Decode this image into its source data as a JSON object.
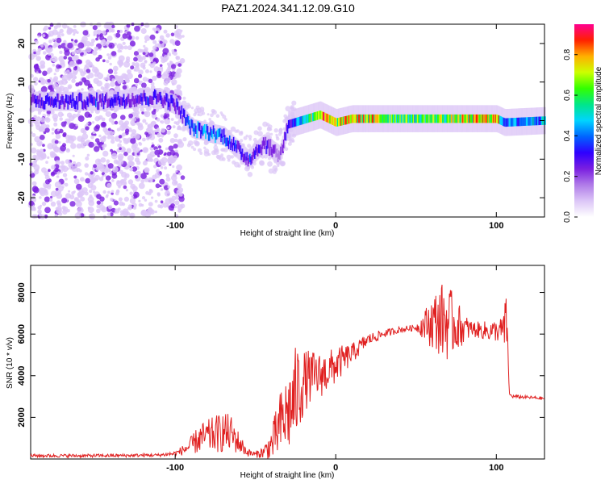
{
  "figure": {
    "title": "PAZ1.2024.341.12.09.G10"
  },
  "colors": {
    "snr_line": "#e02020",
    "axis": "#000000",
    "spectrogram_palette": [
      "#ffffff",
      "#dcc6f7",
      "#b07be8",
      "#7a1fe0",
      "#2f00ff",
      "#0064ff",
      "#00d4ff",
      "#00e68a",
      "#33ff00",
      "#ccff00",
      "#ffb000",
      "#ff2000",
      "#ff0090"
    ]
  },
  "chart_data": [
    {
      "type": "heatmap",
      "title": "",
      "xlabel": "Height of straight line (km)",
      "ylabel": "Frequency (Hz)",
      "xlim": [
        -190,
        130
      ],
      "ylim": [
        -25,
        25
      ],
      "x_ticks": [
        -100,
        0,
        100
      ],
      "x_tick_labels": [
        "-100",
        "0",
        "100"
      ],
      "y_ticks": [
        -20,
        -10,
        0,
        10,
        20
      ],
      "y_tick_labels": [
        "-20",
        "-10",
        "0",
        "10",
        "20"
      ],
      "colorbar": {
        "label": "Normalized spectral amplitude",
        "range": [
          0,
          0.95
        ],
        "ticks": [
          0.0,
          0.2,
          0.4,
          0.6,
          0.8
        ],
        "tick_labels": [
          "0.0",
          "0.2",
          "0.4",
          "0.6",
          "0.8"
        ]
      },
      "ridge": [
        {
          "x": -190,
          "freq": 5,
          "amp": 0.3
        },
        {
          "x": -150,
          "freq": 5,
          "amp": 0.3
        },
        {
          "x": -110,
          "freq": 6,
          "amp": 0.3
        },
        {
          "x": -100,
          "freq": 4,
          "amp": 0.3
        },
        {
          "x": -90,
          "freq": -2,
          "amp": 0.4
        },
        {
          "x": -70,
          "freq": -4,
          "amp": 0.4
        },
        {
          "x": -55,
          "freq": -10,
          "amp": 0.3
        },
        {
          "x": -45,
          "freq": -6,
          "amp": 0.3
        },
        {
          "x": -35,
          "freq": -9,
          "amp": 0.2
        },
        {
          "x": -30,
          "freq": -1,
          "amp": 0.3
        },
        {
          "x": -10,
          "freq": 1.5,
          "amp": 0.8
        },
        {
          "x": 0,
          "freq": -0.5,
          "amp": 0.7
        },
        {
          "x": 10,
          "freq": 0.5,
          "amp": 0.8
        },
        {
          "x": 50,
          "freq": 0.5,
          "amp": 0.6
        },
        {
          "x": 100,
          "freq": 0.5,
          "amp": 0.8
        },
        {
          "x": 105,
          "freq": -0.5,
          "amp": 0.4
        },
        {
          "x": 130,
          "freq": 0,
          "amp": 0.5
        }
      ]
    },
    {
      "type": "line",
      "title": "",
      "xlabel": "Height of straight line (km)",
      "ylabel": "SNR (10 * v/v)",
      "xlim": [
        -190,
        130
      ],
      "ylim": [
        0,
        9300
      ],
      "x_ticks": [
        -100,
        0,
        100
      ],
      "x_tick_labels": [
        "-100",
        "0",
        "100"
      ],
      "y_ticks": [
        2000,
        4000,
        6000,
        8000
      ],
      "y_tick_labels": [
        "2000",
        "4000",
        "6000",
        "8000"
      ],
      "series": [
        {
          "x": [
            -190,
            -170,
            -150,
            -130,
            -110,
            -100,
            -95,
            -90,
            -85,
            -80,
            -75,
            -70,
            -65,
            -60,
            -55,
            -50,
            -45,
            -40,
            -35,
            -30,
            -27,
            -25,
            -23,
            -20,
            -18,
            -15,
            -10,
            -5,
            0,
            10,
            20,
            30,
            40,
            50,
            55,
            60,
            65,
            68,
            70,
            75,
            80,
            85,
            90,
            95,
            100,
            104,
            106,
            107,
            108,
            110,
            120,
            130
          ],
          "values": [
            150,
            150,
            150,
            160,
            180,
            250,
            400,
            600,
            900,
            1000,
            1100,
            1200,
            1100,
            700,
            300,
            200,
            300,
            600,
            1400,
            2000,
            2400,
            2800,
            3200,
            3500,
            3700,
            3800,
            3900,
            4100,
            4400,
            5000,
            5700,
            6000,
            6200,
            6300,
            6350,
            6450,
            6500,
            6450,
            6400,
            6300,
            6200,
            6200,
            6150,
            6100,
            6100,
            6100,
            6200,
            6050,
            3100,
            3000,
            2950,
            2900
          ],
          "spread": [
            80,
            80,
            80,
            80,
            80,
            120,
            250,
            450,
            700,
            800,
            900,
            1000,
            900,
            500,
            200,
            150,
            300,
            800,
            1600,
            2000,
            2200,
            2400,
            2200,
            1600,
            1400,
            1300,
            1100,
            1000,
            900,
            500,
            300,
            200,
            150,
            150,
            700,
            1300,
            1700,
            2000,
            1800,
            1300,
            700,
            400,
            400,
            500,
            500,
            700,
            1600,
            200,
            100,
            80,
            80,
            80
          ]
        }
      ]
    }
  ]
}
